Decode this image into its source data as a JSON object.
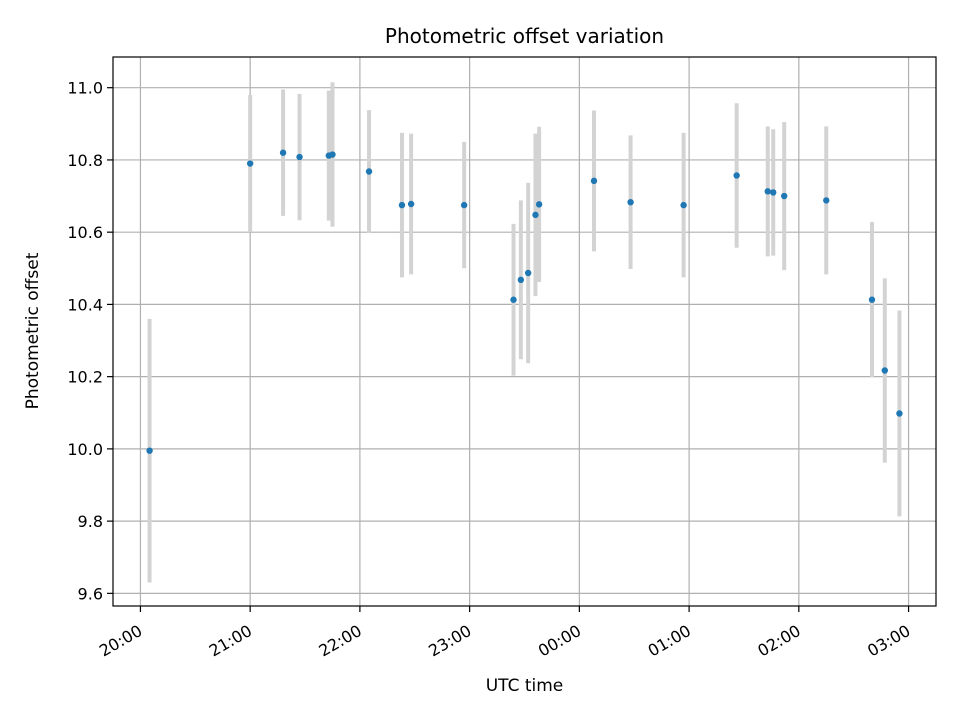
{
  "chart_data": {
    "type": "scatter",
    "title": "Photometric offset variation",
    "xlabel": "UTC time",
    "ylabel": "Photometric offset",
    "x_axis_kind": "time (hours, wrapping past midnight)",
    "xlim": [
      "19:45",
      "03:15"
    ],
    "ylim": [
      9.565,
      11.085
    ],
    "xticks": [
      "20:00",
      "21:00",
      "22:00",
      "23:00",
      "00:00",
      "01:00",
      "02:00",
      "03:00"
    ],
    "yticks": [
      9.6,
      9.8,
      10.0,
      10.2,
      10.4,
      10.6,
      10.8,
      11.0
    ],
    "ytick_labels": [
      "9.6",
      "9.8",
      "10.0",
      "10.2",
      "10.4",
      "10.6",
      "10.8",
      "11.0"
    ],
    "grid": true,
    "legend": "none",
    "colors": {
      "point": "#1f77b4",
      "errorbar": "#d3d3d3",
      "grid": "#b0b0b0"
    },
    "series": [
      {
        "points": [
          {
            "x": "20:05",
            "y": 9.995,
            "err": 0.365
          },
          {
            "x": "21:00",
            "y": 10.79,
            "err": 0.19
          },
          {
            "x": "21:18",
            "y": 10.82,
            "err": 0.175
          },
          {
            "x": "21:27",
            "y": 10.808,
            "err": 0.175
          },
          {
            "x": "21:43",
            "y": 10.812,
            "err": 0.18
          },
          {
            "x": "21:45",
            "y": 10.815,
            "err": 0.2
          },
          {
            "x": "22:05",
            "y": 10.768,
            "err": 0.17
          },
          {
            "x": "22:23",
            "y": 10.675,
            "err": 0.2
          },
          {
            "x": "22:28",
            "y": 10.678,
            "err": 0.195
          },
          {
            "x": "22:57",
            "y": 10.675,
            "err": 0.175
          },
          {
            "x": "23:24",
            "y": 10.413,
            "err": 0.21
          },
          {
            "x": "23:28",
            "y": 10.468,
            "err": 0.22
          },
          {
            "x": "23:32",
            "y": 10.487,
            "err": 0.25
          },
          {
            "x": "23:36",
            "y": 10.648,
            "err": 0.225
          },
          {
            "x": "23:38",
            "y": 10.677,
            "err": 0.215
          },
          {
            "x": "00:08",
            "y": 10.742,
            "err": 0.195
          },
          {
            "x": "00:28",
            "y": 10.683,
            "err": 0.185
          },
          {
            "x": "00:57",
            "y": 10.675,
            "err": 0.2
          },
          {
            "x": "01:26",
            "y": 10.757,
            "err": 0.2
          },
          {
            "x": "01:43",
            "y": 10.713,
            "err": 0.18
          },
          {
            "x": "01:46",
            "y": 10.71,
            "err": 0.175
          },
          {
            "x": "01:52",
            "y": 10.7,
            "err": 0.205
          },
          {
            "x": "02:15",
            "y": 10.688,
            "err": 0.205
          },
          {
            "x": "02:40",
            "y": 10.413,
            "err": 0.215
          },
          {
            "x": "02:47",
            "y": 10.217,
            "err": 0.255
          },
          {
            "x": "02:55",
            "y": 10.098,
            "err": 0.285
          }
        ]
      }
    ]
  }
}
